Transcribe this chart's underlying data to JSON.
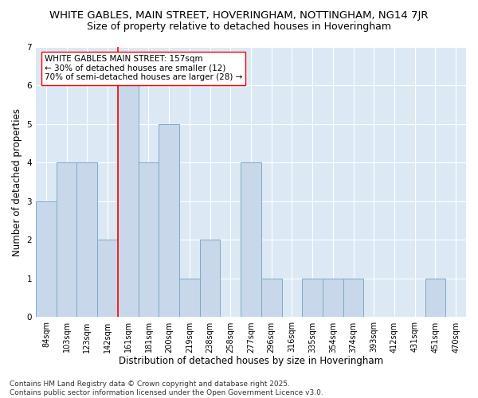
{
  "title": "WHITE GABLES, MAIN STREET, HOVERINGHAM, NOTTINGHAM, NG14 7JR",
  "subtitle": "Size of property relative to detached houses in Hoveringham",
  "xlabel": "Distribution of detached houses by size in Hoveringham",
  "ylabel": "Number of detached properties",
  "categories": [
    "84sqm",
    "103sqm",
    "123sqm",
    "142sqm",
    "161sqm",
    "181sqm",
    "200sqm",
    "219sqm",
    "238sqm",
    "258sqm",
    "277sqm",
    "296sqm",
    "316sqm",
    "335sqm",
    "354sqm",
    "374sqm",
    "393sqm",
    "412sqm",
    "431sqm",
    "451sqm",
    "470sqm"
  ],
  "values": [
    3,
    4,
    4,
    2,
    6,
    4,
    5,
    1,
    2,
    0,
    4,
    1,
    0,
    1,
    1,
    1,
    0,
    0,
    0,
    1,
    0
  ],
  "bar_color": "#c8d8ea",
  "bar_edge_color": "#7aaac8",
  "red_line_index": 4,
  "ylim": [
    0,
    7
  ],
  "yticks": [
    0,
    1,
    2,
    3,
    4,
    5,
    6,
    7
  ],
  "annotation_text": "WHITE GABLES MAIN STREET: 157sqm\n← 30% of detached houses are smaller (12)\n70% of semi-detached houses are larger (28) →",
  "red_line_x": 3.5,
  "footer": "Contains HM Land Registry data © Crown copyright and database right 2025.\nContains public sector information licensed under the Open Government Licence v3.0.",
  "background_color": "#dce9f5",
  "title_fontsize": 9.5,
  "subtitle_fontsize": 9,
  "tick_fontsize": 7,
  "ylabel_fontsize": 8.5,
  "xlabel_fontsize": 8.5,
  "annotation_fontsize": 7.5,
  "footer_fontsize": 6.5
}
